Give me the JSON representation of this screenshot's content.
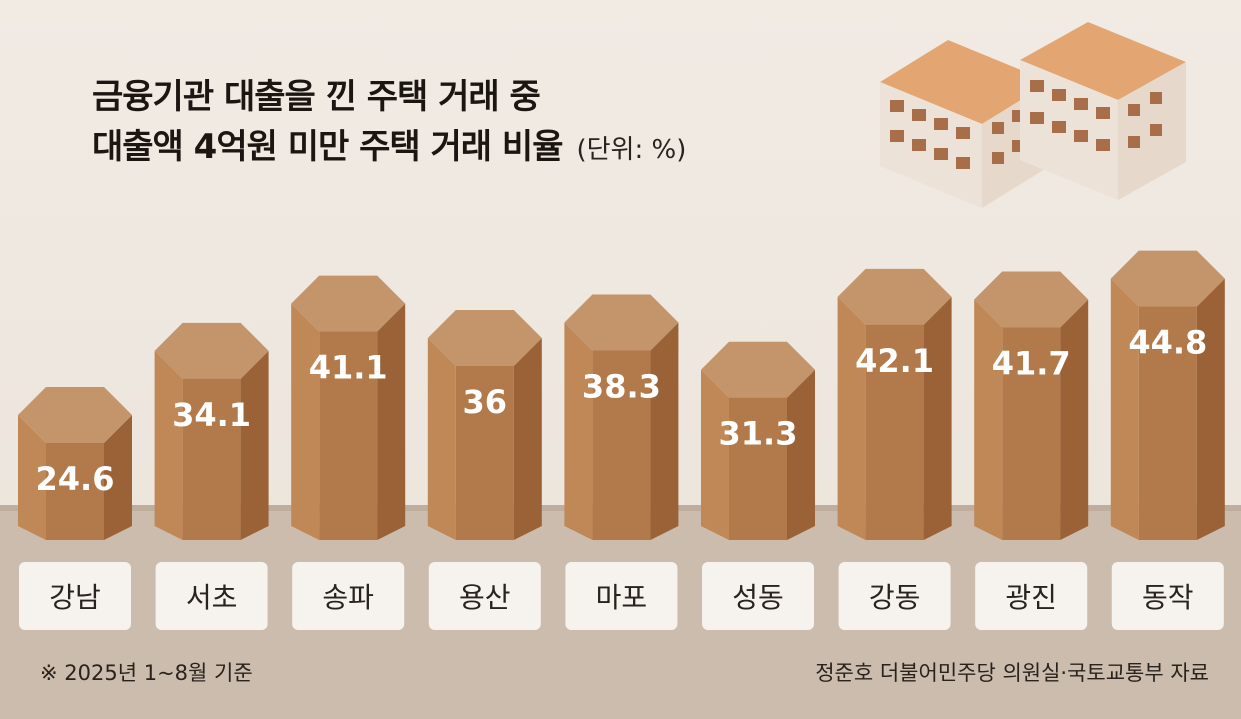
{
  "title_lines": [
    "금융기관 대출을 낀 주택 거래 중",
    "대출액 4억원 미만 주택 거래 비율"
  ],
  "unit": "(단위: %)",
  "footnote": "※ 2025년 1~8월 기준",
  "source": "정준호 더불어민주당 의원실·국토교통부 자료",
  "colors": {
    "pillar_top": "#c4946a",
    "pillar_front": "#b27a4a",
    "pillar_left": "#c08757",
    "pillar_right": "#9a6236",
    "value_text": "#ffffff",
    "label_box": "#f6f3ef",
    "ground": "#cbbcae"
  },
  "decoration": "isometric-apartment-buildings-icon",
  "chart_data": {
    "type": "bar",
    "categories": [
      "강남",
      "서초",
      "송파",
      "용산",
      "마포",
      "성동",
      "강동",
      "광진",
      "동작"
    ],
    "values": [
      24.6,
      34.1,
      41.1,
      36,
      38.3,
      31.3,
      42.1,
      41.7,
      44.8
    ],
    "value_labels": [
      "24.6",
      "34.1",
      "41.1",
      "36",
      "38.3",
      "31.3",
      "42.1",
      "41.7",
      "44.8"
    ],
    "title": "금융기관 대출을 낀 주택 거래 중 대출액 4억원 미만 주택 거래 비율",
    "unit": "%",
    "grid": false,
    "legend": "none"
  }
}
